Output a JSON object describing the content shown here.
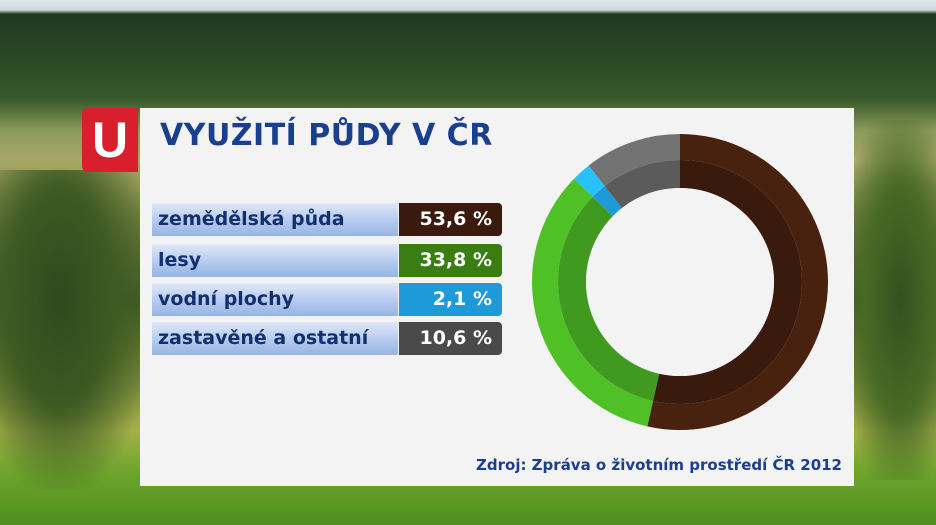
{
  "logo": {
    "text": "U"
  },
  "chart_data": {
    "type": "pie",
    "style": "donut",
    "title": "VYUŽITÍ PŮDY V ČR",
    "series": [
      {
        "name": "zemědělská půda",
        "value": 53.6,
        "label": "53,6 %",
        "color": "#3a1a0c"
      },
      {
        "name": "lesy",
        "value": 33.8,
        "label": "33,8 %",
        "color": "#3f9a1f"
      },
      {
        "name": "vodní plochy",
        "value": 2.1,
        "label": "2,1 %",
        "color": "#1f9ad8"
      },
      {
        "name": "zastavěné a ostatní",
        "value": 10.6,
        "label": "10,6 %",
        "color": "#5b5b5b"
      }
    ],
    "start_angle_deg": 0,
    "direction": "clockwise",
    "source": "Zdroj: Zpráva o životním prostředí ČR 2012"
  }
}
